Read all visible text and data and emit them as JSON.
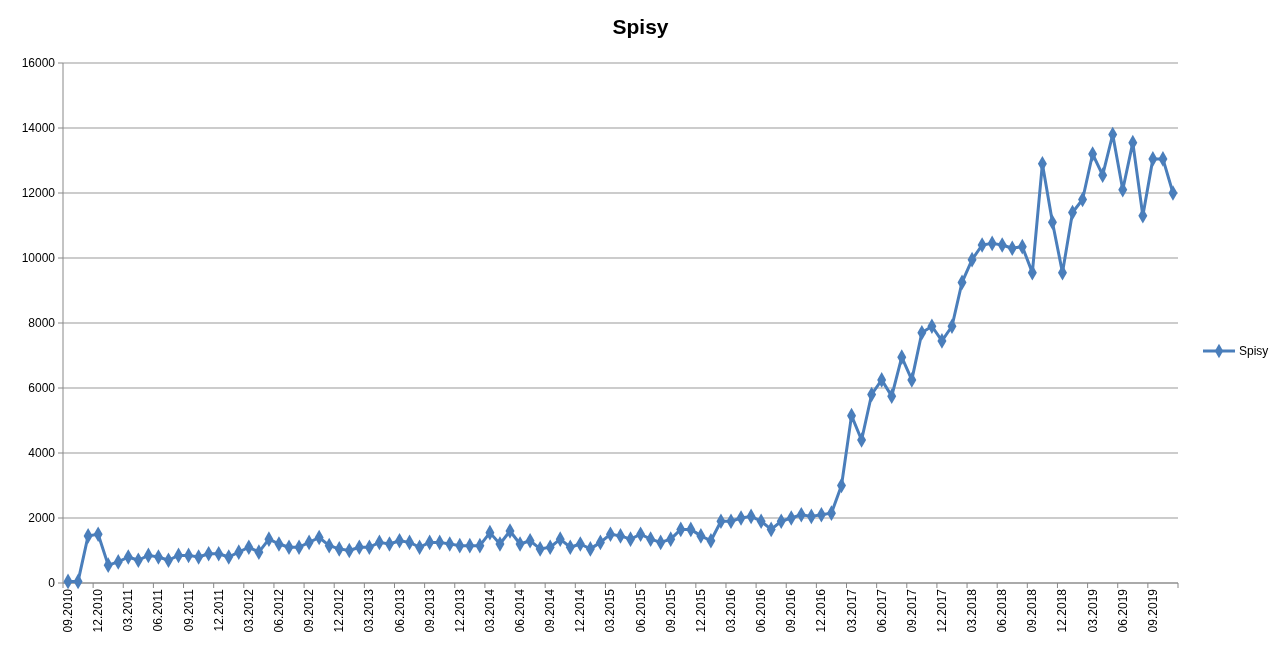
{
  "chart_data": {
    "type": "line",
    "title": "Spisy",
    "categories": [
      "09.2010",
      null,
      null,
      "12.2010",
      null,
      null,
      "03.2011",
      null,
      null,
      "06.2011",
      null,
      null,
      "09.2011",
      null,
      null,
      "12.2011",
      null,
      null,
      "03.2012",
      null,
      null,
      "06.2012",
      null,
      null,
      "09.2012",
      null,
      null,
      "12.2012",
      null,
      null,
      "03.2013",
      null,
      null,
      "06.2013",
      null,
      null,
      "09.2013",
      null,
      null,
      "12.2013",
      null,
      null,
      "03.2014",
      null,
      null,
      "06.2014",
      null,
      null,
      "09.2014",
      null,
      null,
      "12.2014",
      null,
      null,
      "03.2015",
      null,
      null,
      "06.2015",
      null,
      null,
      "09.2015",
      null,
      null,
      "12.2015",
      null,
      null,
      "03.2016",
      null,
      null,
      "06.2016",
      null,
      null,
      "09.2016",
      null,
      null,
      "12.2016",
      null,
      null,
      "03.2017",
      null,
      null,
      "06.2017",
      null,
      null,
      "09.2017",
      null,
      null,
      "12.2017",
      null,
      null,
      "03.2018",
      null,
      null,
      "06.2018",
      null,
      null,
      "09.2018",
      null,
      null,
      "12.2018",
      null,
      null,
      "03.2019",
      null,
      null,
      "06.2019",
      null,
      null,
      "09.2019",
      null,
      null
    ],
    "series": [
      {
        "name": "Spisy",
        "color": "#4a7ebb",
        "values": [
          50,
          50,
          1450,
          1500,
          550,
          650,
          800,
          700,
          850,
          800,
          700,
          850,
          850,
          800,
          900,
          900,
          800,
          950,
          1100,
          950,
          1350,
          1200,
          1100,
          1100,
          1250,
          1400,
          1150,
          1050,
          1000,
          1100,
          1100,
          1250,
          1200,
          1300,
          1250,
          1100,
          1250,
          1250,
          1200,
          1150,
          1150,
          1150,
          1550,
          1200,
          1600,
          1200,
          1300,
          1050,
          1100,
          1350,
          1100,
          1200,
          1050,
          1250,
          1500,
          1450,
          1350,
          1500,
          1350,
          1250,
          1350,
          1650,
          1650,
          1450,
          1300,
          1900,
          1900,
          2000,
          2050,
          1900,
          1650,
          1900,
          2000,
          2100,
          2050,
          2100,
          2150,
          3000,
          5150,
          4400,
          5800,
          6250,
          5750,
          6950,
          6250,
          7700,
          7900,
          7450,
          7900,
          9250,
          9950,
          10400,
          10450,
          10400,
          10300,
          10350,
          9550,
          12900,
          11100,
          9550,
          11400,
          11800,
          13200,
          12550,
          13800,
          12100,
          13550,
          11300,
          13050,
          13050,
          12000
        ]
      }
    ],
    "ylim": [
      0,
      16000
    ],
    "yticks": [
      0,
      2000,
      4000,
      6000,
      8000,
      10000,
      12000,
      14000,
      16000
    ],
    "grid": "y",
    "legend": "right",
    "marker": "diamond",
    "line_style": "solid"
  }
}
